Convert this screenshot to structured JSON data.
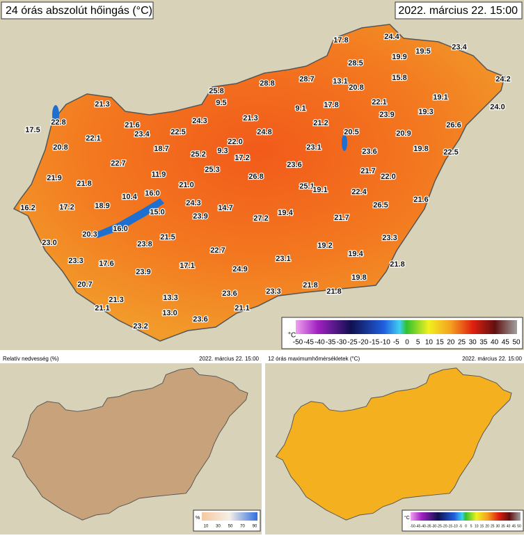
{
  "main": {
    "title": "24 órás abszolút hőingás (°C)",
    "date": "2022. március 22. 15:00",
    "stations": [
      "17.8",
      "24.4",
      "28.5",
      "19.9",
      "19.5",
      "23.4",
      "15.8",
      "24.2",
      "28.8",
      "28.7",
      "13.1",
      "20.8",
      "25.8",
      "9.5",
      "21.3",
      "22.1",
      "19.1",
      "9.1",
      "17.8",
      "24.0",
      "22.8",
      "17.5",
      "21.6",
      "22.5",
      "24.3",
      "21.3",
      "23.9",
      "19.3",
      "21.2",
      "26.6",
      "22.1",
      "23.4",
      "24.8",
      "20.5",
      "20.9",
      "22.0",
      "20.8",
      "18.7",
      "25.2",
      "9.3",
      "17.2",
      "23.1",
      "23.6",
      "19.8",
      "22.5",
      "22.7",
      "25.3",
      "23.6",
      "11.9",
      "21.7",
      "22.0",
      "21.9",
      "21.8",
      "26.8",
      "21.0",
      "25.1",
      "19.1",
      "22.4",
      "16.0",
      "10.4",
      "16.2",
      "17.2",
      "18.9",
      "24.3",
      "14.7",
      "26.5",
      "21.6",
      "15.0",
      "19.4",
      "23.9",
      "27.2",
      "21.7",
      "16.0",
      "20.3",
      "21.5",
      "23.0",
      "23.8",
      "23.3",
      "22.7",
      "19.2",
      "23.3",
      "17.6",
      "17.1",
      "23.1",
      "19.4",
      "24.9",
      "23.9",
      "21.8",
      "20.7",
      "19.8",
      "23.6",
      "23.3",
      "21.8",
      "21.8",
      "21.3",
      "13.3",
      "21.1",
      "21.1",
      "13.0",
      "23.6",
      "23.2"
    ],
    "scale": {
      "unit": "°C",
      "ticks": [
        -50,
        -45,
        -40,
        -35,
        -30,
        -25,
        -20,
        -15,
        -10,
        -5,
        0,
        5,
        10,
        15,
        20,
        25,
        30,
        35,
        40,
        45,
        50
      ]
    }
  },
  "humidity": {
    "title": "Relatív nedvesség (%)",
    "date": "2022. március 22. 15:00",
    "scale": {
      "unit": "%",
      "ticks": [
        10,
        30,
        50,
        70,
        90
      ]
    }
  },
  "maxtemp": {
    "title": "12 órás maximumhőmérsékletek (°C)",
    "date": "2022. március 22. 15:00",
    "scale": {
      "unit": "°C",
      "ticks": [
        -50,
        -45,
        -40,
        -35,
        -30,
        -25,
        -20,
        -15,
        -10,
        -5,
        0,
        5,
        10,
        15,
        20,
        25,
        30,
        35,
        40,
        45,
        50
      ]
    }
  }
}
